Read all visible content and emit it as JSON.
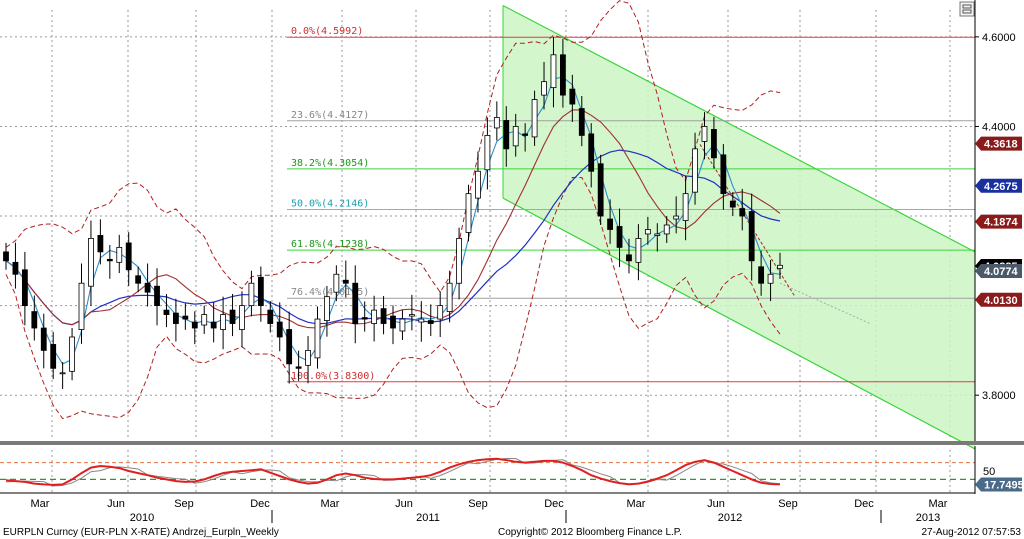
{
  "footer": {
    "left": "EURPLN Curncy (EUR-PLN X-RATE) Andrzej_Eurpln_Weekly",
    "center": "Copyright© 2012 Bloomberg Finance L.P.",
    "right": "27-Aug-2012 07:57:53"
  },
  "colors": {
    "channel_fill": "#cbf5c4",
    "channel_line": "#3ad43a",
    "fib_red": "#e83a3a",
    "fib_gray": "#a0a0a0",
    "fib_green": "#3ad43a",
    "fib_cyan": "#3ad4e0",
    "bollinger": "#b02020",
    "ma_fast": "#2a8fd0",
    "ma_mid": "#a03030",
    "ma_slow": "#2030c0",
    "rsi_line": "#e02020",
    "tag_red": "#8b1a1a",
    "tag_blue": "#1a2fa0",
    "tag_black": "#000000",
    "tag_gray": "#4a5a6a"
  },
  "chart_data": [
    {
      "type": "candlestick",
      "title": "",
      "ylim": [
        3.7,
        4.66
      ],
      "y_ticks": [
        "4.6000",
        "4.4000",
        "3.8000"
      ],
      "x_ticks": [
        "Mar",
        "Jun",
        "Sep",
        "Dec",
        "Mar",
        "Jun",
        "Sep",
        "Dec",
        "Mar",
        "Jun",
        "Sep",
        "Dec",
        "Mar"
      ],
      "year_labels": [
        "2010",
        "2011",
        "2012",
        "2013"
      ],
      "fibonacci": [
        {
          "label": "0.0%(4.5992)",
          "value": 4.5992,
          "color": "red"
        },
        {
          "label": "23.6%(4.4127)",
          "value": 4.4127,
          "color": "gray"
        },
        {
          "label": "38.2%(4.3054)",
          "value": 4.3054,
          "color": "green"
        },
        {
          "label": "50.0%(4.2146)",
          "value": 4.2146,
          "color": "cyan"
        },
        {
          "label": "61.8%(4.1238)",
          "value": 4.1238,
          "color": "green"
        },
        {
          "label": "76.4%(4.0165)",
          "value": 4.0165,
          "color": "gray"
        },
        {
          "label": "100.0%(3.8300)",
          "value": 3.83,
          "color": "red"
        }
      ],
      "price_tags": [
        {
          "label": "4.3618",
          "value": 4.3618,
          "color": "red"
        },
        {
          "label": "4.2675",
          "value": 4.2675,
          "color": "blue"
        },
        {
          "label": "4.1874",
          "value": 4.1874,
          "color": "red"
        },
        {
          "label": "4.0885",
          "value": 4.0885,
          "color": "black"
        },
        {
          "label": "4.0774",
          "value": 4.0774,
          "color": "gray"
        },
        {
          "label": "4.0130",
          "value": 4.013,
          "color": "red"
        }
      ],
      "close_approx": [
        4.1,
        4.07,
        4.0,
        3.95,
        3.9,
        3.86,
        3.85,
        3.93,
        4.05,
        4.15,
        4.12,
        4.1,
        4.13,
        4.08,
        4.05,
        4.03,
        4.0,
        3.98,
        3.96,
        3.97,
        3.95,
        3.98,
        3.95,
        3.98,
        3.96,
        4.0,
        4.05,
        4.0,
        3.96,
        3.93,
        3.87,
        3.86,
        3.9,
        3.97,
        4.02,
        4.07,
        4.05,
        3.96,
        3.97,
        3.99,
        3.96,
        3.95,
        3.97,
        3.98,
        3.97,
        3.96,
        4.0,
        4.05,
        4.15,
        4.25,
        4.3,
        4.38,
        4.42,
        4.35,
        4.4,
        4.38,
        4.46,
        4.5,
        4.56,
        4.47,
        4.45,
        4.38,
        4.3,
        4.2,
        4.17,
        4.13,
        4.1,
        4.15,
        4.17,
        4.16,
        4.18,
        4.2,
        4.25,
        4.35,
        4.4,
        4.33,
        4.25,
        4.22,
        4.2,
        4.1,
        4.05,
        4.07,
        4.09
      ],
      "channel": {
        "upper_start": 4.67,
        "upper_end": 4.12,
        "lower_start": 4.24,
        "lower_end": 3.68
      }
    },
    {
      "type": "line",
      "title": "",
      "ylim": [
        0,
        100
      ],
      "y_ticks": [
        "50"
      ],
      "reference_lines": [
        70,
        30
      ],
      "last_value_label": "17.7495",
      "series": [
        {
          "values": [
            28,
            26,
            24,
            20,
            18,
            17,
            18,
            30,
            45,
            58,
            62,
            60,
            57,
            50,
            45,
            40,
            34,
            30,
            26,
            24,
            25,
            30,
            38,
            45,
            48,
            50,
            52,
            54,
            46,
            38,
            30,
            24,
            20,
            22,
            30,
            40,
            44,
            40,
            34,
            31,
            30,
            30,
            32,
            34,
            36,
            40,
            48,
            58,
            66,
            72,
            76,
            78,
            79,
            76,
            72,
            70,
            72,
            74,
            74,
            70,
            62,
            52,
            40,
            32,
            26,
            21,
            18,
            20,
            25,
            32,
            40,
            52,
            64,
            72,
            76,
            70,
            60,
            50,
            40,
            30,
            22,
            19,
            18
          ]
        }
      ]
    }
  ]
}
